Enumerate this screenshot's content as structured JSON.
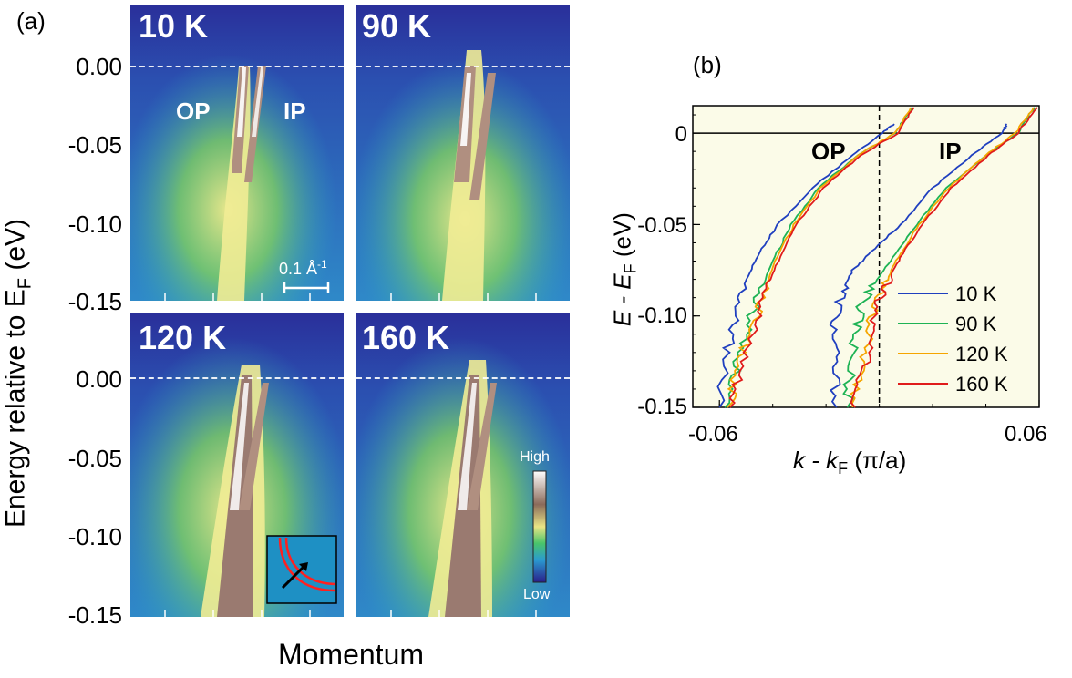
{
  "figure": {
    "panel_a_label": "(a)",
    "panel_b_label": "(b)",
    "panel_a_ylabel_main": "Energy relative to E",
    "panel_a_ylabel_sub": "F",
    "panel_a_ylabel_unit": " (eV)",
    "panel_a_xlabel": "Momentum",
    "panel_a_yticks": [
      "0.00",
      "-0.05",
      "-0.10",
      "-0.15"
    ],
    "panels": [
      {
        "temp": "10 K",
        "op_label": "OP",
        "ip_label": "IP",
        "scale_bar": "0.1 Å",
        "scale_sup": "-1"
      },
      {
        "temp": "90 K"
      },
      {
        "temp": "120 K"
      },
      {
        "temp": "160 K"
      }
    ],
    "colorbar": {
      "high": "High",
      "low": "Low"
    }
  },
  "chart_data": {
    "type": "line",
    "panel": "(b)",
    "xlabel_main": "k - k",
    "xlabel_sub": "F",
    "xlabel_unit": " (π/a)",
    "ylabel_main": "E - E",
    "ylabel_sub": "F",
    "ylabel_unit": " (eV)",
    "xlim": [
      -0.07,
      0.06
    ],
    "ylim": [
      -0.15,
      0.015
    ],
    "xticks": [
      "-0.06",
      "0.06"
    ],
    "yticks": [
      "0",
      "-0.05",
      "-0.10",
      "-0.15"
    ],
    "band_labels": [
      "OP",
      "IP"
    ],
    "background": "#fbfbe8",
    "legend_position": "right",
    "series": [
      {
        "name": "10 K",
        "color": "#1f3fbf",
        "op": [
          [
            0.0055,
            0.005
          ],
          [
            0.001,
            0.0
          ],
          [
            -0.01,
            -0.012
          ],
          [
            -0.025,
            -0.03
          ],
          [
            -0.038,
            -0.05
          ],
          [
            -0.045,
            -0.065
          ],
          [
            -0.05,
            -0.08
          ],
          [
            -0.054,
            -0.1
          ],
          [
            -0.057,
            -0.12
          ],
          [
            -0.06,
            -0.15
          ]
        ],
        "ip": [
          [
            0.048,
            0.005
          ],
          [
            0.046,
            0.0
          ],
          [
            0.035,
            -0.012
          ],
          [
            0.02,
            -0.03
          ],
          [
            0.008,
            -0.05
          ],
          [
            -0.003,
            -0.065
          ],
          [
            -0.01,
            -0.075
          ],
          [
            -0.014,
            -0.088
          ],
          [
            -0.017,
            -0.105
          ],
          [
            -0.017,
            -0.125
          ],
          [
            -0.016,
            -0.15
          ]
        ]
      },
      {
        "name": "90 K",
        "color": "#1db354",
        "op": [
          [
            0.012,
            0.014
          ],
          [
            0.006,
            0.0
          ],
          [
            -0.008,
            -0.012
          ],
          [
            -0.023,
            -0.03
          ],
          [
            -0.033,
            -0.05
          ],
          [
            -0.04,
            -0.07
          ],
          [
            -0.046,
            -0.09
          ],
          [
            -0.05,
            -0.11
          ],
          [
            -0.054,
            -0.13
          ],
          [
            -0.058,
            -0.15
          ]
        ],
        "ip": [
          [
            0.058,
            0.014
          ],
          [
            0.052,
            0.0
          ],
          [
            0.04,
            -0.012
          ],
          [
            0.025,
            -0.03
          ],
          [
            0.014,
            -0.05
          ],
          [
            0.005,
            -0.068
          ],
          [
            -0.002,
            -0.082
          ],
          [
            -0.007,
            -0.095
          ],
          [
            -0.009,
            -0.11
          ],
          [
            -0.011,
            -0.13
          ],
          [
            -0.012,
            -0.15
          ]
        ]
      },
      {
        "name": "120 K",
        "color": "#f5a500",
        "op": [
          [
            0.012,
            0.014
          ],
          [
            0.006,
            0.0
          ],
          [
            -0.008,
            -0.012
          ],
          [
            -0.022,
            -0.03
          ],
          [
            -0.032,
            -0.05
          ],
          [
            -0.039,
            -0.07
          ],
          [
            -0.044,
            -0.09
          ],
          [
            -0.049,
            -0.11
          ],
          [
            -0.053,
            -0.13
          ],
          [
            -0.057,
            -0.15
          ]
        ],
        "ip": [
          [
            0.058,
            0.014
          ],
          [
            0.051,
            0.0
          ],
          [
            0.04,
            -0.012
          ],
          [
            0.026,
            -0.03
          ],
          [
            0.015,
            -0.05
          ],
          [
            0.007,
            -0.068
          ],
          [
            0.002,
            -0.082
          ],
          [
            -0.002,
            -0.095
          ],
          [
            -0.004,
            -0.11
          ],
          [
            -0.007,
            -0.13
          ],
          [
            -0.01,
            -0.15
          ]
        ]
      },
      {
        "name": "160 K",
        "color": "#e01b1b",
        "op": [
          [
            0.013,
            0.014
          ],
          [
            0.007,
            0.0
          ],
          [
            -0.007,
            -0.012
          ],
          [
            -0.021,
            -0.03
          ],
          [
            -0.031,
            -0.05
          ],
          [
            -0.038,
            -0.07
          ],
          [
            -0.043,
            -0.09
          ],
          [
            -0.048,
            -0.11
          ],
          [
            -0.052,
            -0.13
          ],
          [
            -0.056,
            -0.15
          ]
        ],
        "ip": [
          [
            0.059,
            0.014
          ],
          [
            0.052,
            0.0
          ],
          [
            0.041,
            -0.012
          ],
          [
            0.027,
            -0.03
          ],
          [
            0.016,
            -0.05
          ],
          [
            0.008,
            -0.068
          ],
          [
            0.003,
            -0.082
          ],
          [
            -0.001,
            -0.095
          ],
          [
            -0.003,
            -0.11
          ],
          [
            -0.006,
            -0.13
          ],
          [
            -0.009,
            -0.15
          ]
        ]
      }
    ]
  }
}
